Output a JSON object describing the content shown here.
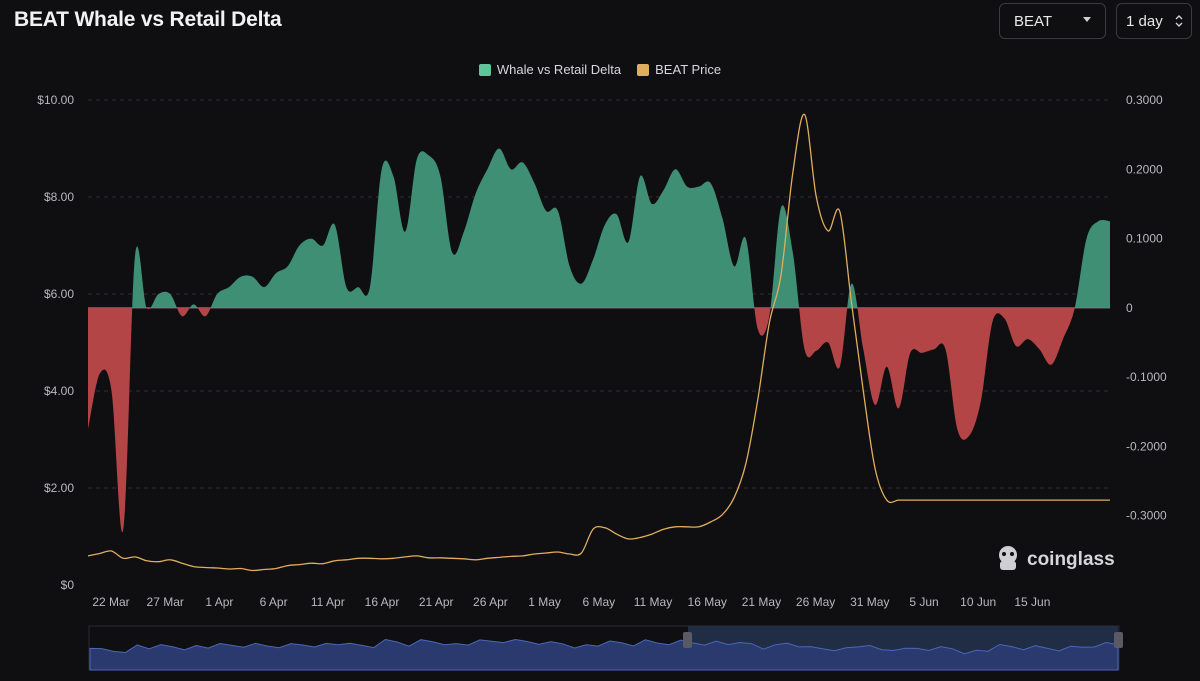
{
  "header": {
    "title": "BEAT Whale vs Retail Delta"
  },
  "controls": {
    "asset_label": "BEAT",
    "interval_label": "1 day"
  },
  "legend": [
    {
      "label": "Whale vs Retail Delta",
      "color": "#5fc49a"
    },
    {
      "label": "BEAT Price",
      "color": "#e0ad5f"
    }
  ],
  "watermark": {
    "text": "coinglass"
  },
  "colors": {
    "positive": "#3f8f74",
    "negative": "#b34547",
    "price": "#e0ad5f",
    "navigator": "#3b4f8f"
  },
  "chart_data": {
    "type": "area",
    "x_ticks": [
      "22 Mar",
      "27 Mar",
      "1 Apr",
      "6 Apr",
      "11 Apr",
      "16 Apr",
      "21 Apr",
      "26 Apr",
      "1 May",
      "6 May",
      "11 May",
      "16 May",
      "21 May",
      "26 May",
      "31 May",
      "5 Jun",
      "10 Jun",
      "15 Jun"
    ],
    "left_axis": {
      "ticks": [
        "$0",
        "$2.00",
        "$4.00",
        "$6.00",
        "$8.00",
        "$10.00"
      ],
      "range": [
        0,
        10
      ]
    },
    "right_axis": {
      "ticks": [
        "-0.3000",
        "-0.2000",
        "-0.1000",
        "0",
        "0.1000",
        "0.2000",
        "0.3000"
      ],
      "range": [
        -0.4,
        0.3
      ]
    },
    "series": [
      {
        "name": "Whale vs Retail Delta",
        "axis": "right",
        "x_start": "20 Mar",
        "values": [
          -0.175,
          -0.095,
          -0.12,
          -0.32,
          0.075,
          0.0,
          0.02,
          0.02,
          -0.012,
          0.005,
          -0.012,
          0.02,
          0.03,
          0.045,
          0.045,
          0.03,
          0.05,
          0.06,
          0.09,
          0.1,
          0.09,
          0.12,
          0.03,
          0.03,
          0.03,
          0.2,
          0.19,
          0.11,
          0.215,
          0.22,
          0.19,
          0.08,
          0.11,
          0.165,
          0.2,
          0.23,
          0.2,
          0.21,
          0.18,
          0.14,
          0.14,
          0.06,
          0.035,
          0.07,
          0.12,
          0.135,
          0.095,
          0.19,
          0.15,
          0.17,
          0.2,
          0.175,
          0.175,
          0.18,
          0.13,
          0.06,
          0.1,
          -0.03,
          -0.012,
          0.145,
          0.08,
          -0.06,
          -0.062,
          -0.05,
          -0.085,
          0.035,
          -0.06,
          -0.14,
          -0.085,
          -0.145,
          -0.065,
          -0.065,
          -0.06,
          -0.06,
          -0.175,
          -0.185,
          -0.135,
          -0.02,
          -0.015,
          -0.055,
          -0.045,
          -0.06,
          -0.082,
          -0.045,
          0.0,
          0.1,
          0.125,
          0.125
        ]
      },
      {
        "name": "BEAT Price",
        "axis": "left",
        "x_start": "20 Mar",
        "values": [
          0.6,
          0.65,
          0.7,
          0.55,
          0.58,
          0.5,
          0.48,
          0.52,
          0.45,
          0.38,
          0.36,
          0.35,
          0.33,
          0.34,
          0.3,
          0.32,
          0.34,
          0.4,
          0.42,
          0.45,
          0.44,
          0.5,
          0.52,
          0.55,
          0.55,
          0.54,
          0.55,
          0.58,
          0.6,
          0.56,
          0.56,
          0.55,
          0.54,
          0.52,
          0.55,
          0.57,
          0.59,
          0.6,
          0.64,
          0.66,
          0.68,
          0.64,
          0.66,
          1.15,
          1.18,
          1.05,
          0.95,
          0.98,
          1.05,
          1.15,
          1.2,
          1.2,
          1.2,
          1.3,
          1.45,
          1.8,
          2.5,
          3.8,
          5.4,
          6.4,
          8.5,
          9.7,
          8.0,
          7.3,
          7.7,
          5.8,
          4.0,
          2.4,
          1.75,
          1.75,
          1.75,
          1.75,
          1.75,
          1.75,
          1.75,
          1.75,
          1.75,
          1.75,
          1.75,
          1.75,
          1.75,
          1.75,
          1.75,
          1.75,
          1.75,
          1.75,
          1.75,
          1.75
        ]
      }
    ],
    "grid": true,
    "legend_position": "top-center"
  }
}
